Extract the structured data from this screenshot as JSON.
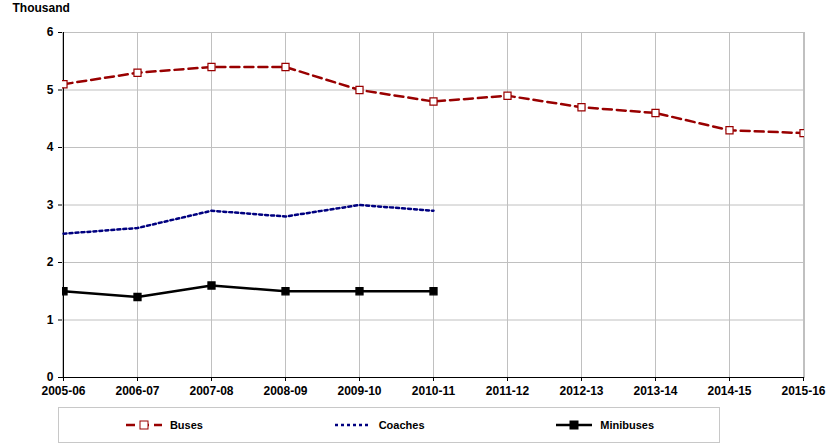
{
  "chart_data": {
    "type": "line",
    "y_label": "Thousand",
    "categories": [
      "2005-06",
      "2006-07",
      "2007-08",
      "2008-09",
      "2009-10",
      "2010-11",
      "2011-12",
      "2012-13",
      "2013-14",
      "2014-15",
      "2015-16"
    ],
    "series": [
      {
        "name": "Buses",
        "color": "#990000",
        "line_style": "dashed",
        "marker": "square_open",
        "values": [
          5.1,
          5.3,
          5.4,
          5.4,
          5.0,
          4.8,
          4.9,
          4.7,
          4.6,
          4.3,
          4.25
        ]
      },
      {
        "name": "Coaches",
        "color": "#000080",
        "line_style": "dotted",
        "marker": "none",
        "values": [
          2.5,
          2.6,
          2.9,
          2.8,
          3.0,
          2.9,
          null,
          null,
          null,
          null,
          null
        ]
      },
      {
        "name": "Minibuses",
        "color": "#000000",
        "line_style": "solid",
        "marker": "square",
        "values": [
          1.5,
          1.4,
          1.6,
          1.5,
          1.5,
          1.5,
          null,
          null,
          null,
          null,
          null
        ]
      }
    ],
    "ylim": [
      0,
      6
    ],
    "yticks": [
      0,
      1,
      2,
      3,
      4,
      5,
      6
    ],
    "grid": true,
    "legend": "bottom"
  }
}
